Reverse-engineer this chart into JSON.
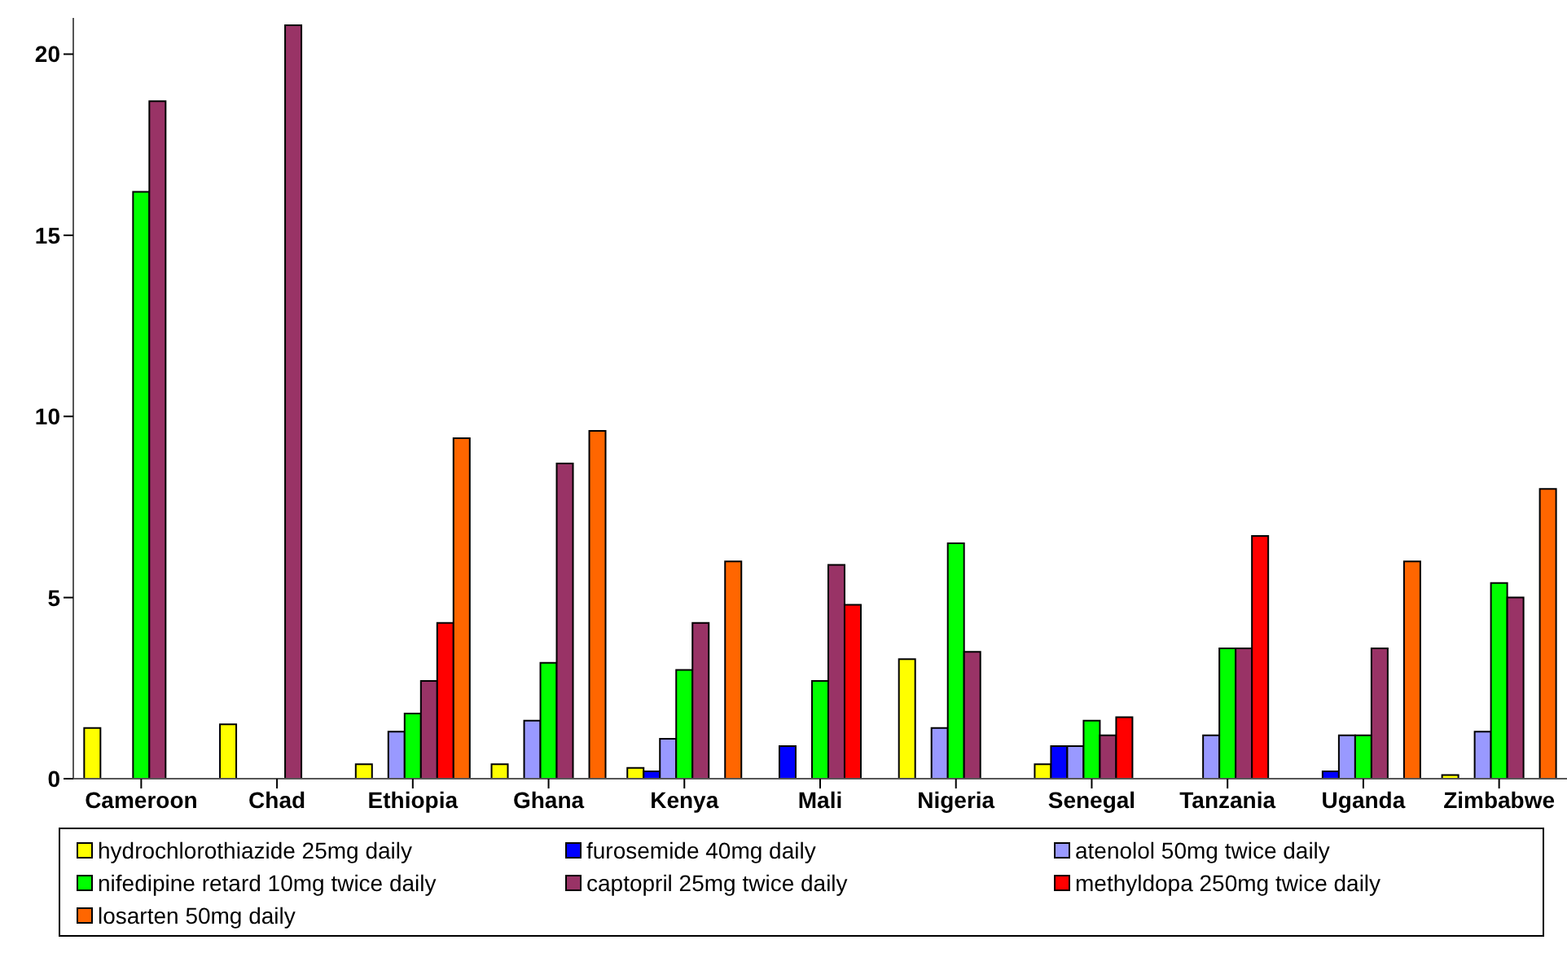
{
  "chart_data": {
    "type": "bar",
    "categories": [
      "Cameroon",
      "Chad",
      "Ethiopia",
      "Ghana",
      "Kenya",
      "Mali",
      "Nigeria",
      "Senegal",
      "Tanzania",
      "Uganda",
      "Zimbabwe"
    ],
    "series": [
      {
        "name": "hydrochlorothiazide 25mg daily",
        "color": "#ffff00",
        "values": [
          1.4,
          1.5,
          0.4,
          0.4,
          0.3,
          null,
          3.3,
          0.4,
          null,
          null,
          0.1
        ]
      },
      {
        "name": "furosemide 40mg daily",
        "color": "#0000ff",
        "values": [
          null,
          null,
          null,
          null,
          0.2,
          0.9,
          null,
          0.9,
          null,
          0.2,
          null
        ]
      },
      {
        "name": "atenolol 50mg twice daily",
        "color": "#9999ff",
        "values": [
          null,
          null,
          1.3,
          1.6,
          1.1,
          null,
          1.4,
          0.9,
          1.2,
          1.2,
          1.3
        ]
      },
      {
        "name": "nifedipine retard 10mg twice daily",
        "color": "#00ff00",
        "values": [
          16.2,
          null,
          1.8,
          3.2,
          3.0,
          2.7,
          6.5,
          1.6,
          3.6,
          1.2,
          5.4
        ]
      },
      {
        "name": "captopril 25mg twice daily",
        "color": "#993366",
        "values": [
          18.7,
          20.8,
          2.7,
          8.7,
          4.3,
          5.9,
          3.5,
          1.2,
          3.6,
          3.6,
          5.0
        ]
      },
      {
        "name": "methyldopa 250mg twice daily",
        "color": "#ff0000",
        "values": [
          null,
          null,
          4.3,
          null,
          null,
          4.8,
          null,
          1.7,
          6.7,
          null,
          null
        ]
      },
      {
        "name": "losarten 50mg daily",
        "color": "#ff6600",
        "values": [
          null,
          null,
          9.4,
          9.6,
          6.0,
          null,
          null,
          null,
          null,
          6.0,
          8.0
        ]
      }
    ],
    "ylim": [
      0,
      21
    ],
    "yticks": [
      0,
      5,
      10,
      15,
      20
    ],
    "grid": false,
    "legend": "bottom"
  }
}
